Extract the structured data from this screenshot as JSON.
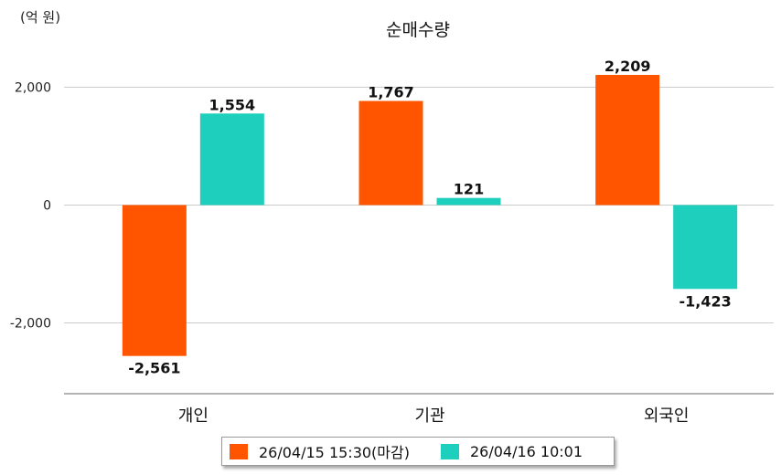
{
  "chart_data": {
    "type": "bar",
    "title": "순매수량",
    "unit_label": "(억 원)",
    "categories": [
      "개인",
      "기관",
      "외국인"
    ],
    "series": [
      {
        "name": "26/04/15 15:30(마감)",
        "color": "#ff5500",
        "values": [
          -2561,
          1767,
          2209
        ],
        "labels": [
          "-2,561",
          "1,767",
          "2,209"
        ]
      },
      {
        "name": "26/04/16 10:01",
        "color": "#1ecfbd",
        "values": [
          1554,
          121,
          -1423
        ],
        "labels": [
          "1,554",
          "121",
          "-1,423"
        ]
      }
    ],
    "yticks": [
      2000,
      0,
      -2000
    ],
    "ytick_labels": [
      "2,000",
      "0",
      "-2,000"
    ],
    "ylim": [
      -3200,
      2700
    ],
    "grid": true,
    "legend_position": "bottom"
  }
}
